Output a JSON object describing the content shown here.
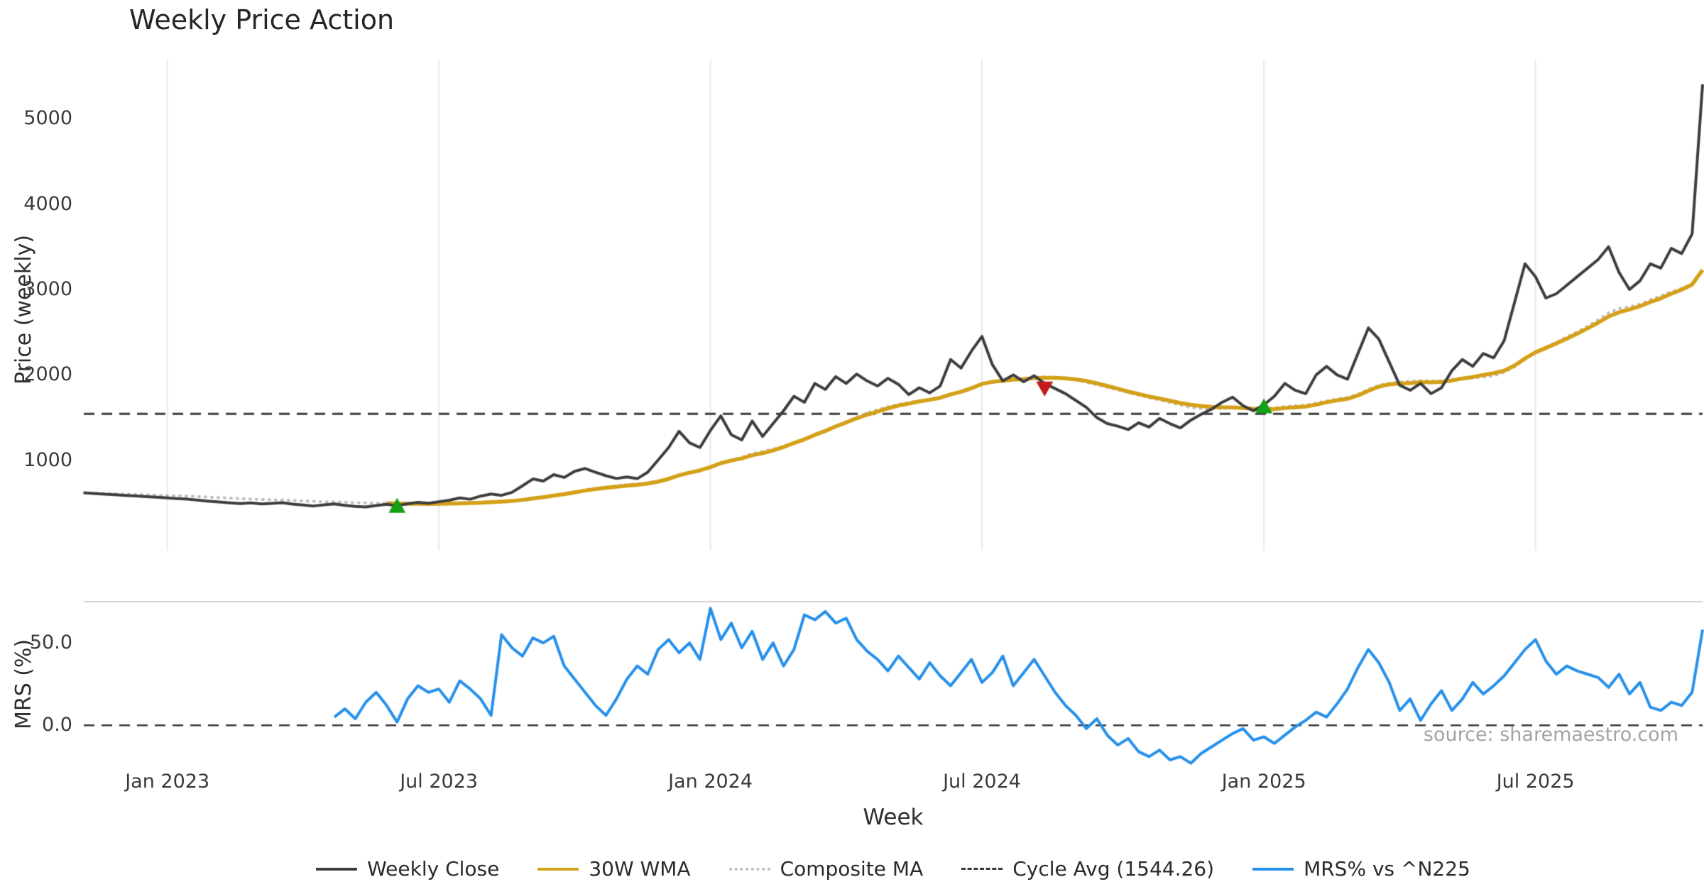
{
  "title": "Weekly Price Action",
  "source_note": "source: sharemaestro.com",
  "colors": {
    "close": "#3d3d3d",
    "wma": "#D4A017",
    "composite": "#bdbdbd",
    "cycle_avg": "#3a3a3a",
    "mrs": "#2590EB",
    "buy_marker": "#15a015",
    "sell_marker": "#C41A1A",
    "grid": "#e8e8e8",
    "spine": "#cfcfcf",
    "tick_label": "#3a3a3a",
    "source": "#a3a3a3"
  },
  "chart_data": {
    "type": "line",
    "title": "Weekly Price Action",
    "xlabel": "Week",
    "x_tick_weeks": [
      8,
      34,
      60,
      86,
      113,
      139
    ],
    "x_tick_labels": [
      "Jan 2023",
      "Jul 2023",
      "Jan 2024",
      "Jul 2024",
      "Jan 2025",
      "Jul 2025"
    ],
    "price_panel": {
      "ylabel": "Price (weekly)",
      "ylim": [
        -56,
        5690
      ],
      "yticks": [
        1000,
        2000,
        3000,
        4000,
        5000
      ],
      "grid": "vertical",
      "cycle_avg": 1544.26,
      "cycle_avg_label": "Cycle Avg (1544.26)"
    },
    "mrs_panel": {
      "ylabel": "MRS (%)",
      "ylim": [
        -24,
        75
      ],
      "yticks": [
        0.0,
        50.0
      ],
      "ytick_labels": [
        "0.0",
        "50.0"
      ],
      "zero_line": 0.0
    },
    "weekly_close": [
      620,
      612,
      605,
      598,
      590,
      583,
      575,
      568,
      560,
      552,
      545,
      534,
      522,
      512,
      502,
      494,
      502,
      490,
      497,
      505,
      488,
      477,
      466,
      479,
      490,
      473,
      461,
      455,
      472,
      486,
      470,
      492,
      508,
      498,
      516,
      533,
      560,
      545,
      582,
      606,
      590,
      626,
      702,
      782,
      758,
      832,
      800,
      872,
      905,
      860,
      820,
      788,
      806,
      786,
      862,
      1005,
      1150,
      1340,
      1205,
      1150,
      1350,
      1520,
      1300,
      1240,
      1460,
      1280,
      1430,
      1580,
      1750,
      1680,
      1900,
      1830,
      1980,
      1900,
      2010,
      1930,
      1870,
      1960,
      1890,
      1770,
      1850,
      1790,
      1870,
      2180,
      2080,
      2280,
      2450,
      2120,
      1930,
      2000,
      1920,
      1990,
      1900,
      1840,
      1780,
      1700,
      1620,
      1500,
      1430,
      1400,
      1360,
      1440,
      1390,
      1490,
      1430,
      1380,
      1470,
      1540,
      1600,
      1680,
      1740,
      1640,
      1580,
      1650,
      1750,
      1900,
      1820,
      1780,
      2000,
      2100,
      2000,
      1950,
      2250,
      2550,
      2420,
      2150,
      1880,
      1820,
      1900,
      1780,
      1850,
      2050,
      2180,
      2100,
      2250,
      2200,
      2400,
      2850,
      3300,
      3150,
      2900,
      2950,
      3050,
      3150,
      3250,
      3350,
      3500,
      3200,
      3000,
      3100,
      3300,
      3250,
      3480,
      3420,
      3650,
      5400
    ],
    "derived": {
      "wma_window": 30,
      "composite_windows": [
        10,
        20,
        30
      ]
    },
    "mrs": {
      "start_week": 24,
      "values": [
        5,
        10,
        4,
        14,
        20,
        12,
        2,
        16,
        24,
        20,
        22,
        14,
        27,
        22,
        16,
        6,
        55,
        47,
        42,
        53,
        50,
        54,
        36,
        28,
        20,
        12,
        6,
        16,
        28,
        36,
        31,
        46,
        52,
        44,
        50,
        40,
        71,
        52,
        62,
        47,
        57,
        40,
        50,
        36,
        46,
        67,
        64,
        69,
        62,
        65,
        52,
        45,
        40,
        33,
        42,
        35,
        28,
        38,
        30,
        24,
        32,
        40,
        26,
        32,
        42,
        24,
        32,
        40,
        30,
        20,
        12,
        6,
        -2,
        4,
        -6,
        -12,
        -8,
        -16,
        -19,
        -15,
        -21,
        -19,
        -23,
        -17,
        -13,
        -9,
        -5,
        -2,
        -9,
        -7,
        -11,
        -6,
        -1,
        3,
        8,
        5,
        13,
        22,
        35,
        46,
        38,
        26,
        9,
        16,
        3,
        13,
        21,
        9,
        16,
        26,
        19,
        24,
        30,
        38,
        46,
        52,
        39,
        31,
        36,
        33,
        31,
        29,
        23,
        31,
        19,
        26,
        11,
        9,
        14,
        12,
        20,
        58
      ]
    },
    "signals": {
      "buys": [
        [
          30,
          452
        ],
        [
          113,
          1618
        ]
      ],
      "sells": [
        [
          92,
          1855
        ]
      ]
    },
    "legend": [
      {
        "label": "Weekly Close",
        "style": "solid",
        "color_key": "close"
      },
      {
        "label": "30W WMA",
        "style": "solid",
        "color_key": "wma"
      },
      {
        "label": "Composite MA",
        "style": "dotted",
        "color_key": "composite"
      },
      {
        "label": "Cycle Avg (1544.26)",
        "style": "dashed",
        "color_key": "cycle_avg"
      },
      {
        "label": "MRS% vs ^N225",
        "style": "solid",
        "color_key": "mrs"
      }
    ]
  }
}
